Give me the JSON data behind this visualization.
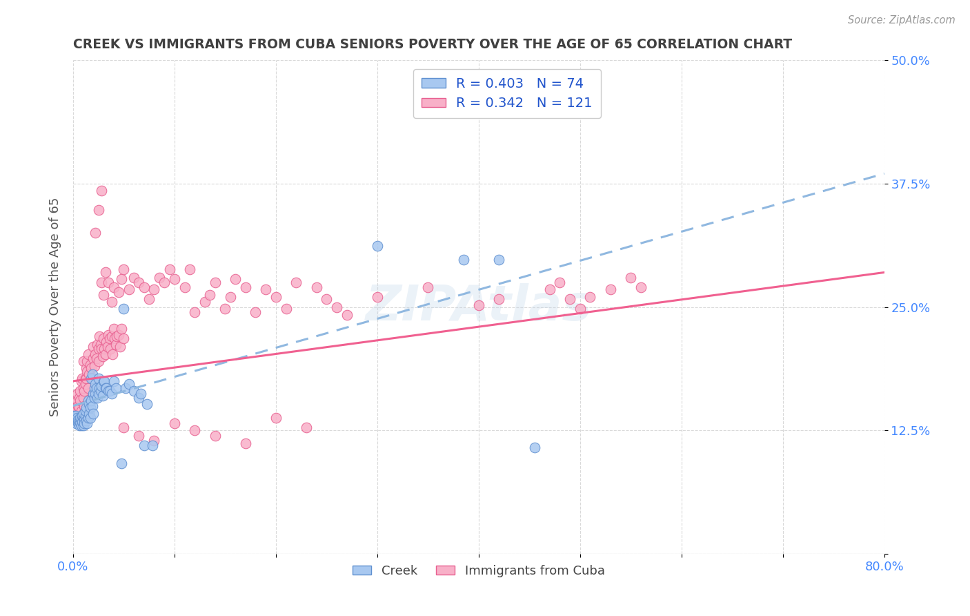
{
  "title": "CREEK VS IMMIGRANTS FROM CUBA SENIORS POVERTY OVER THE AGE OF 65 CORRELATION CHART",
  "source": "Source: ZipAtlas.com",
  "ylabel": "Seniors Poverty Over the Age of 65",
  "xlim": [
    0.0,
    0.8
  ],
  "ylim": [
    0.0,
    0.5
  ],
  "xtick_positions": [
    0.0,
    0.1,
    0.2,
    0.3,
    0.4,
    0.5,
    0.6,
    0.7,
    0.8
  ],
  "xtick_labels": [
    "0.0%",
    "",
    "",
    "",
    "",
    "",
    "",
    "",
    "80.0%"
  ],
  "ytick_positions": [
    0.0,
    0.125,
    0.25,
    0.375,
    0.5
  ],
  "ytick_labels": [
    "",
    "12.5%",
    "25.0%",
    "37.5%",
    "50.0%"
  ],
  "creek_color": "#a8c8f0",
  "cuba_color": "#f8b0c8",
  "creek_edge_color": "#6090d0",
  "cuba_edge_color": "#e86090",
  "trendline_creek_color": "#90b8e0",
  "trendline_cuba_color": "#f06090",
  "legend_label_creek": "R = 0.403   N = 74",
  "legend_label_cuba": "R = 0.342   N = 121",
  "watermark": "ZIPAtlas",
  "background_color": "#ffffff",
  "grid_color": "#d0d0d0",
  "title_color": "#404040",
  "axis_label_color": "#555555",
  "tick_color": "#4488ff",
  "legend_text_color": "#2255cc",
  "bottom_legend_color": "#444444",
  "creek_scatter": [
    [
      0.001,
      0.14
    ],
    [
      0.002,
      0.135
    ],
    [
      0.002,
      0.138
    ],
    [
      0.003,
      0.132
    ],
    [
      0.003,
      0.14
    ],
    [
      0.004,
      0.135
    ],
    [
      0.004,
      0.138
    ],
    [
      0.005,
      0.133
    ],
    [
      0.005,
      0.136
    ],
    [
      0.006,
      0.13
    ],
    [
      0.006,
      0.135
    ],
    [
      0.007,
      0.133
    ],
    [
      0.007,
      0.138
    ],
    [
      0.008,
      0.13
    ],
    [
      0.008,
      0.136
    ],
    [
      0.009,
      0.134
    ],
    [
      0.009,
      0.14
    ],
    [
      0.01,
      0.13
    ],
    [
      0.01,
      0.138
    ],
    [
      0.01,
      0.142
    ],
    [
      0.011,
      0.136
    ],
    [
      0.011,
      0.132
    ],
    [
      0.012,
      0.14
    ],
    [
      0.012,
      0.145
    ],
    [
      0.013,
      0.135
    ],
    [
      0.013,
      0.148
    ],
    [
      0.014,
      0.132
    ],
    [
      0.015,
      0.138
    ],
    [
      0.015,
      0.155
    ],
    [
      0.016,
      0.142
    ],
    [
      0.016,
      0.152
    ],
    [
      0.017,
      0.138
    ],
    [
      0.017,
      0.148
    ],
    [
      0.018,
      0.155
    ],
    [
      0.018,
      0.178
    ],
    [
      0.019,
      0.15
    ],
    [
      0.019,
      0.182
    ],
    [
      0.02,
      0.142
    ],
    [
      0.02,
      0.162
    ],
    [
      0.021,
      0.168
    ],
    [
      0.021,
      0.158
    ],
    [
      0.022,
      0.162
    ],
    [
      0.022,
      0.172
    ],
    [
      0.023,
      0.168
    ],
    [
      0.024,
      0.158
    ],
    [
      0.025,
      0.178
    ],
    [
      0.025,
      0.162
    ],
    [
      0.026,
      0.168
    ],
    [
      0.027,
      0.165
    ],
    [
      0.028,
      0.17
    ],
    [
      0.029,
      0.16
    ],
    [
      0.03,
      0.175
    ],
    [
      0.031,
      0.175
    ],
    [
      0.032,
      0.168
    ],
    [
      0.033,
      0.168
    ],
    [
      0.035,
      0.165
    ],
    [
      0.036,
      0.165
    ],
    [
      0.038,
      0.162
    ],
    [
      0.04,
      0.175
    ],
    [
      0.042,
      0.168
    ],
    [
      0.05,
      0.248
    ],
    [
      0.052,
      0.168
    ],
    [
      0.055,
      0.172
    ],
    [
      0.06,
      0.165
    ],
    [
      0.065,
      0.158
    ],
    [
      0.067,
      0.162
    ],
    [
      0.07,
      0.11
    ],
    [
      0.073,
      0.152
    ],
    [
      0.078,
      0.11
    ],
    [
      0.048,
      0.092
    ],
    [
      0.3,
      0.312
    ],
    [
      0.385,
      0.298
    ],
    [
      0.42,
      0.298
    ],
    [
      0.455,
      0.108
    ]
  ],
  "cuba_scatter": [
    [
      0.002,
      0.148
    ],
    [
      0.003,
      0.145
    ],
    [
      0.004,
      0.155
    ],
    [
      0.004,
      0.162
    ],
    [
      0.005,
      0.15
    ],
    [
      0.006,
      0.158
    ],
    [
      0.006,
      0.148
    ],
    [
      0.007,
      0.155
    ],
    [
      0.007,
      0.165
    ],
    [
      0.008,
      0.145
    ],
    [
      0.008,
      0.175
    ],
    [
      0.009,
      0.178
    ],
    [
      0.01,
      0.168
    ],
    [
      0.01,
      0.158
    ],
    [
      0.01,
      0.195
    ],
    [
      0.011,
      0.15
    ],
    [
      0.011,
      0.165
    ],
    [
      0.012,
      0.178
    ],
    [
      0.012,
      0.172
    ],
    [
      0.013,
      0.188
    ],
    [
      0.013,
      0.178
    ],
    [
      0.014,
      0.195
    ],
    [
      0.014,
      0.185
    ],
    [
      0.015,
      0.168
    ],
    [
      0.015,
      0.202
    ],
    [
      0.016,
      0.182
    ],
    [
      0.017,
      0.192
    ],
    [
      0.018,
      0.188
    ],
    [
      0.019,
      0.178
    ],
    [
      0.02,
      0.198
    ],
    [
      0.02,
      0.21
    ],
    [
      0.021,
      0.19
    ],
    [
      0.022,
      0.202
    ],
    [
      0.023,
      0.198
    ],
    [
      0.024,
      0.212
    ],
    [
      0.025,
      0.195
    ],
    [
      0.025,
      0.208
    ],
    [
      0.026,
      0.22
    ],
    [
      0.027,
      0.212
    ],
    [
      0.028,
      0.208
    ],
    [
      0.029,
      0.2
    ],
    [
      0.03,
      0.218
    ],
    [
      0.031,
      0.208
    ],
    [
      0.032,
      0.202
    ],
    [
      0.033,
      0.215
    ],
    [
      0.034,
      0.21
    ],
    [
      0.035,
      0.222
    ],
    [
      0.036,
      0.218
    ],
    [
      0.037,
      0.208
    ],
    [
      0.038,
      0.22
    ],
    [
      0.039,
      0.202
    ],
    [
      0.04,
      0.228
    ],
    [
      0.041,
      0.218
    ],
    [
      0.042,
      0.212
    ],
    [
      0.043,
      0.22
    ],
    [
      0.045,
      0.222
    ],
    [
      0.046,
      0.21
    ],
    [
      0.048,
      0.228
    ],
    [
      0.05,
      0.218
    ],
    [
      0.022,
      0.325
    ],
    [
      0.025,
      0.348
    ],
    [
      0.028,
      0.368
    ],
    [
      0.028,
      0.275
    ],
    [
      0.03,
      0.262
    ],
    [
      0.032,
      0.285
    ],
    [
      0.035,
      0.275
    ],
    [
      0.038,
      0.255
    ],
    [
      0.04,
      0.27
    ],
    [
      0.045,
      0.265
    ],
    [
      0.048,
      0.278
    ],
    [
      0.05,
      0.288
    ],
    [
      0.055,
      0.268
    ],
    [
      0.06,
      0.28
    ],
    [
      0.065,
      0.275
    ],
    [
      0.07,
      0.27
    ],
    [
      0.075,
      0.258
    ],
    [
      0.08,
      0.268
    ],
    [
      0.085,
      0.28
    ],
    [
      0.09,
      0.275
    ],
    [
      0.095,
      0.288
    ],
    [
      0.1,
      0.278
    ],
    [
      0.11,
      0.27
    ],
    [
      0.115,
      0.288
    ],
    [
      0.12,
      0.245
    ],
    [
      0.13,
      0.255
    ],
    [
      0.135,
      0.262
    ],
    [
      0.14,
      0.275
    ],
    [
      0.15,
      0.248
    ],
    [
      0.155,
      0.26
    ],
    [
      0.16,
      0.278
    ],
    [
      0.17,
      0.27
    ],
    [
      0.18,
      0.245
    ],
    [
      0.19,
      0.268
    ],
    [
      0.2,
      0.26
    ],
    [
      0.21,
      0.248
    ],
    [
      0.22,
      0.275
    ],
    [
      0.24,
      0.27
    ],
    [
      0.25,
      0.258
    ],
    [
      0.26,
      0.25
    ],
    [
      0.27,
      0.242
    ],
    [
      0.05,
      0.128
    ],
    [
      0.065,
      0.12
    ],
    [
      0.08,
      0.115
    ],
    [
      0.1,
      0.132
    ],
    [
      0.12,
      0.125
    ],
    [
      0.14,
      0.12
    ],
    [
      0.17,
      0.112
    ],
    [
      0.2,
      0.138
    ],
    [
      0.23,
      0.128
    ],
    [
      0.3,
      0.26
    ],
    [
      0.35,
      0.27
    ],
    [
      0.4,
      0.252
    ],
    [
      0.42,
      0.258
    ],
    [
      0.47,
      0.268
    ],
    [
      0.48,
      0.275
    ],
    [
      0.49,
      0.258
    ],
    [
      0.5,
      0.248
    ],
    [
      0.51,
      0.26
    ],
    [
      0.53,
      0.268
    ],
    [
      0.55,
      0.28
    ],
    [
      0.56,
      0.27
    ]
  ],
  "creek_trend_x0": 0.0,
  "creek_trend_y0": 0.15,
  "creek_trend_x1": 0.8,
  "creek_trend_y1": 0.385,
  "cuba_trend_x0": 0.0,
  "cuba_trend_y0": 0.175,
  "cuba_trend_x1": 0.8,
  "cuba_trend_y1": 0.285
}
